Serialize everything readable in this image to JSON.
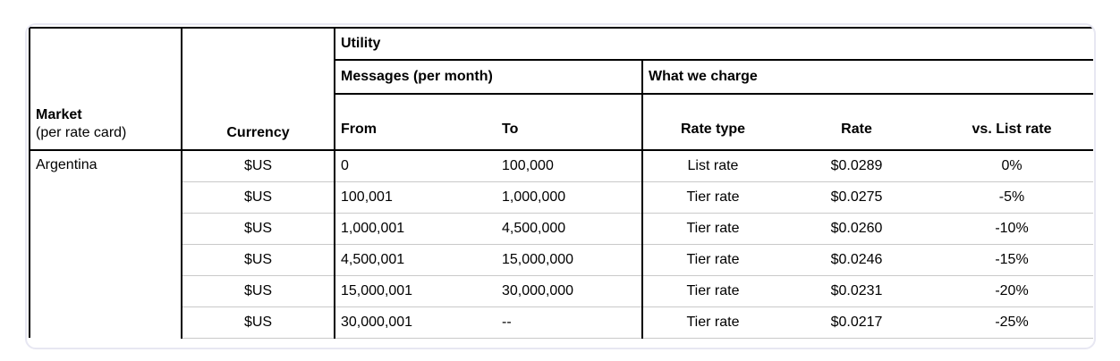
{
  "table": {
    "header": {
      "market_title": "Market",
      "market_subtitle": "(per rate card)",
      "currency": "Currency",
      "utility": "Utility",
      "messages": "Messages (per month)",
      "what_we_charge": "What we charge",
      "from": "From",
      "to": "To",
      "rate_type": "Rate type",
      "rate": "Rate",
      "vs_list_rate": "vs. List rate"
    },
    "market": "Argentina",
    "rows": [
      {
        "currency": "$US",
        "from": "0",
        "to": "100,000",
        "rate_type": "List rate",
        "rate": "$0.0289",
        "vs_list_rate": "0%"
      },
      {
        "currency": "$US",
        "from": "100,001",
        "to": "1,000,000",
        "rate_type": "Tier rate",
        "rate": "$0.0275",
        "vs_list_rate": "-5%"
      },
      {
        "currency": "$US",
        "from": "1,000,001",
        "to": "4,500,000",
        "rate_type": "Tier rate",
        "rate": "$0.0260",
        "vs_list_rate": "-10%"
      },
      {
        "currency": "$US",
        "from": "4,500,001",
        "to": "15,000,000",
        "rate_type": "Tier rate",
        "rate": "$0.0246",
        "vs_list_rate": "-15%"
      },
      {
        "currency": "$US",
        "from": "15,000,001",
        "to": "30,000,000",
        "rate_type": "Tier rate",
        "rate": "$0.0231",
        "vs_list_rate": "-20%"
      },
      {
        "currency": "$US",
        "from": "30,000,001",
        "to": "--",
        "rate_type": "Tier rate",
        "rate": "$0.0217",
        "vs_list_rate": "-25%"
      }
    ]
  }
}
